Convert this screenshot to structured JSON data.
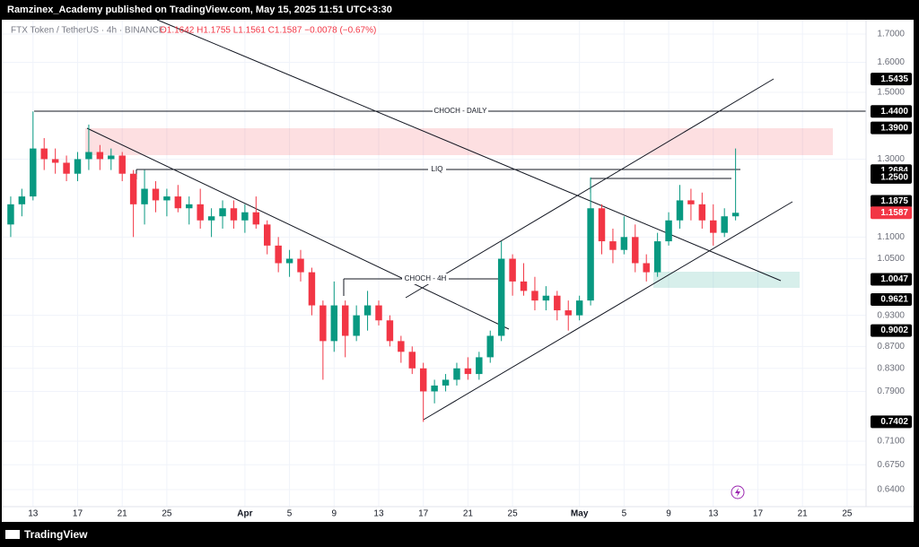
{
  "header": {
    "title": "Ramzinex_Academy published on TradingView.com, May 15, 2025 11:51 UTC+3:30"
  },
  "chart_data": {
    "type": "candlestick",
    "symbol": "FTX Token / TetherUS · 4h · BINANCE",
    "ohlc_text": "O1.1642 H1.1755 L1.1561 C1.1587 −0.0078 (−0.67%)",
    "up_color": "#089981",
    "down_color": "#f23645",
    "log_scale": true,
    "grid": true,
    "x": [
      11,
      12,
      13,
      14,
      15,
      16,
      17,
      18,
      19,
      20,
      21,
      22,
      23,
      24,
      25,
      26,
      27,
      28,
      29,
      30,
      31,
      32,
      33,
      34,
      35,
      36,
      37,
      38,
      39,
      40,
      41,
      42,
      43,
      44,
      45,
      46,
      47,
      48,
      49,
      50,
      51,
      52,
      53,
      54,
      55,
      56,
      57,
      58,
      59,
      60,
      61,
      62,
      63,
      64,
      65,
      66,
      67,
      68,
      69,
      70,
      71,
      72,
      73,
      74,
      75,
      76
    ],
    "open": [
      1.13,
      1.18,
      1.2,
      1.33,
      1.3,
      1.29,
      1.26,
      1.3,
      1.32,
      1.3,
      1.31,
      1.26,
      1.18,
      1.22,
      1.19,
      1.2,
      1.17,
      1.18,
      1.14,
      1.15,
      1.17,
      1.14,
      1.16,
      1.13,
      1.08,
      1.04,
      1.05,
      1.02,
      0.95,
      0.88,
      0.95,
      0.89,
      0.93,
      0.95,
      0.92,
      0.88,
      0.86,
      0.83,
      0.79,
      0.8,
      0.81,
      0.83,
      0.82,
      0.85,
      0.89,
      1.05,
      1.0,
      0.98,
      0.96,
      0.97,
      0.94,
      0.93,
      0.96,
      1.17,
      1.09,
      1.07,
      1.1,
      1.04,
      1.02,
      1.09,
      1.14,
      1.19,
      1.18,
      1.14,
      1.11,
      1.15
    ],
    "high": [
      1.2,
      1.22,
      1.44,
      1.36,
      1.33,
      1.31,
      1.32,
      1.4,
      1.34,
      1.33,
      1.32,
      1.27,
      1.27,
      1.24,
      1.22,
      1.23,
      1.2,
      1.22,
      1.17,
      1.19,
      1.19,
      1.18,
      1.2,
      1.14,
      1.1,
      1.07,
      1.07,
      1.03,
      0.96,
      1.0,
      0.96,
      0.95,
      0.98,
      0.96,
      0.93,
      0.89,
      0.87,
      0.84,
      0.81,
      0.82,
      0.84,
      0.85,
      0.86,
      0.9,
      1.09,
      1.06,
      1.04,
      1.01,
      0.99,
      0.98,
      0.96,
      0.97,
      1.25,
      1.18,
      1.12,
      1.15,
      1.13,
      1.06,
      1.11,
      1.16,
      1.23,
      1.22,
      1.21,
      1.18,
      1.17,
      1.33
    ],
    "low": [
      1.1,
      1.15,
      1.19,
      1.27,
      1.26,
      1.24,
      1.24,
      1.27,
      1.27,
      1.27,
      1.24,
      1.1,
      1.13,
      1.16,
      1.15,
      1.16,
      1.13,
      1.12,
      1.1,
      1.12,
      1.12,
      1.11,
      1.12,
      1.06,
      1.02,
      1.01,
      1.0,
      0.93,
      0.81,
      0.86,
      0.85,
      0.88,
      0.9,
      0.91,
      0.87,
      0.84,
      0.82,
      0.74,
      0.77,
      0.79,
      0.8,
      0.81,
      0.81,
      0.84,
      0.88,
      0.97,
      0.97,
      0.94,
      0.94,
      0.92,
      0.9,
      0.92,
      0.95,
      1.06,
      1.04,
      1.06,
      1.02,
      1.0,
      1.01,
      1.08,
      1.12,
      1.14,
      1.12,
      1.08,
      1.1,
      1.14
    ],
    "close": [
      1.18,
      1.2,
      1.33,
      1.3,
      1.29,
      1.26,
      1.3,
      1.32,
      1.3,
      1.31,
      1.26,
      1.18,
      1.22,
      1.19,
      1.2,
      1.17,
      1.18,
      1.14,
      1.15,
      1.17,
      1.14,
      1.16,
      1.13,
      1.08,
      1.04,
      1.05,
      1.02,
      0.95,
      0.88,
      0.95,
      0.89,
      0.93,
      0.95,
      0.92,
      0.88,
      0.86,
      0.83,
      0.79,
      0.8,
      0.81,
      0.83,
      0.82,
      0.85,
      0.89,
      1.05,
      1.0,
      0.98,
      0.96,
      0.97,
      0.94,
      0.93,
      0.96,
      1.17,
      1.09,
      1.07,
      1.1,
      1.04,
      1.02,
      1.09,
      1.14,
      1.19,
      1.18,
      1.14,
      1.11,
      1.15,
      1.1587
    ],
    "xlim": [
      10.2,
      87.7
    ],
    "ylim": [
      0.617,
      1.753
    ],
    "xticks": [
      13,
      17,
      21,
      25,
      {
        "value": 32,
        "label": "Apr"
      },
      {
        "value": 36,
        "label": "5"
      },
      {
        "value": 40,
        "label": "9"
      },
      {
        "value": 44,
        "label": "13"
      },
      {
        "value": 48,
        "label": "17"
      },
      {
        "value": 52,
        "label": "21"
      },
      {
        "value": 56,
        "label": "25"
      },
      {
        "value": 62,
        "label": "May"
      },
      {
        "value": 66,
        "label": "5"
      },
      {
        "value": 70,
        "label": "9"
      },
      {
        "value": 74,
        "label": "13"
      },
      {
        "value": 78,
        "label": "17"
      },
      {
        "value": 82,
        "label": "21"
      },
      {
        "value": 86,
        "label": "25"
      }
    ],
    "yticks": [
      {
        "value": 1.7,
        "label": "1.7000"
      },
      {
        "value": 1.6,
        "label": "1.6000"
      },
      {
        "value": 1.5,
        "label": "1.5000"
      },
      {
        "value": 1.3,
        "label": "1.3000"
      },
      {
        "value": 1.1,
        "label": "1.1000"
      },
      {
        "value": 1.05,
        "label": "1.0500"
      },
      {
        "value": 0.93,
        "label": "0.9300"
      },
      {
        "value": 0.87,
        "label": "0.8700"
      },
      {
        "value": 0.83,
        "label": "0.8300"
      },
      {
        "value": 0.79,
        "label": "0.7900"
      },
      {
        "value": 0.71,
        "label": "0.7100"
      },
      {
        "value": 0.675,
        "label": "0.6750"
      },
      {
        "value": 0.64,
        "label": "0.6400"
      }
    ],
    "price_labels": [
      1.5435,
      {
        "value": 1.44,
        "label": "1.4400"
      },
      {
        "value": 1.39,
        "label": "1.3900"
      },
      1.2684,
      {
        "value": 1.25,
        "label": "1.2500"
      },
      1.1875,
      1.0047,
      0.9621,
      0.9002,
      0.7402
    ],
    "last_price": {
      "value": 1.1587,
      "label": "1.1587",
      "color": "#f23645"
    },
    "annotations": [
      "CHOCH - DAILY",
      "LIQ",
      "CHOCH - 4H"
    ]
  },
  "footer": {
    "brand": "TradingView"
  }
}
